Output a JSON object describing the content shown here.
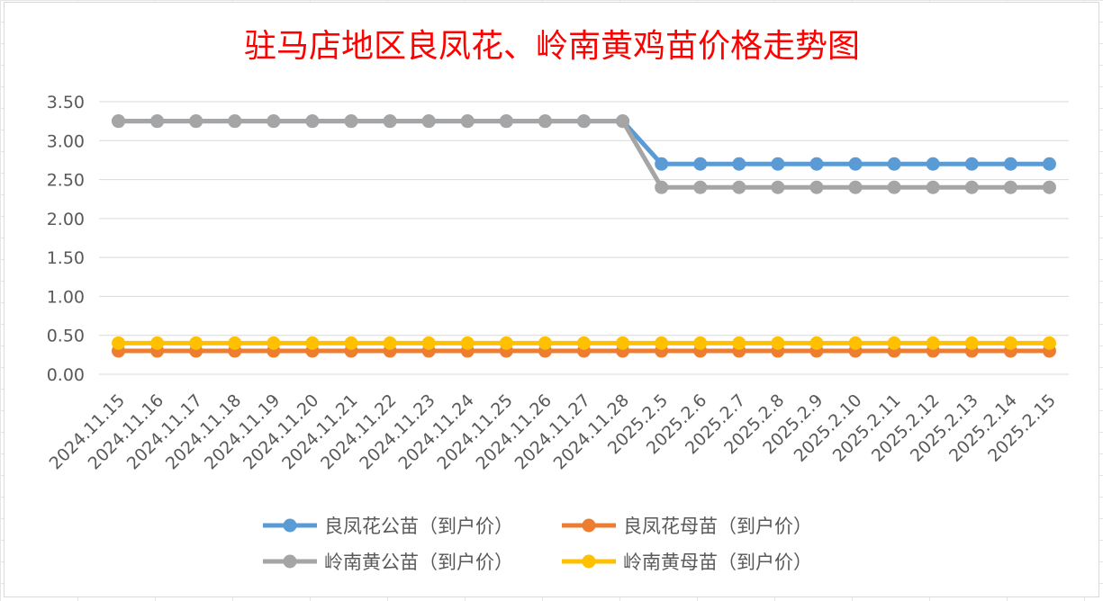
{
  "chart_data": {
    "type": "line",
    "title": "驻马店地区良凤花、岭南黄鸡苗价格走势图",
    "xlabel": "",
    "ylabel": "",
    "ylim": [
      0,
      3.5
    ],
    "yticks": [
      "0.00",
      "0.50",
      "1.00",
      "1.50",
      "2.00",
      "2.50",
      "3.00",
      "3.50"
    ],
    "grid": true,
    "legend_position": "bottom",
    "categories": [
      "2024.11.15",
      "2024.11.16",
      "2024.11.17",
      "2024.11.18",
      "2024.11.19",
      "2024.11.20",
      "2024.11.21",
      "2024.11.22",
      "2024.11.23",
      "2024.11.24",
      "2024.11.25",
      "2024.11.26",
      "2024.11.27",
      "2024.11.28",
      "2025.2.5",
      "2025.2.6",
      "2025.2.7",
      "2025.2.8",
      "2025.2.9",
      "2025.2.10",
      "2025.2.11",
      "2025.2.12",
      "2025.2.13",
      "2025.2.14",
      "2025.2.15"
    ],
    "series": [
      {
        "name": "良凤花公苗（到户价）",
        "color": "#5b9bd5",
        "values": [
          3.25,
          3.25,
          3.25,
          3.25,
          3.25,
          3.25,
          3.25,
          3.25,
          3.25,
          3.25,
          3.25,
          3.25,
          3.25,
          3.25,
          2.7,
          2.7,
          2.7,
          2.7,
          2.7,
          2.7,
          2.7,
          2.7,
          2.7,
          2.7,
          2.7
        ]
      },
      {
        "name": "良凤花母苗（到户价）",
        "color": "#ed7d31",
        "values": [
          0.3,
          0.3,
          0.3,
          0.3,
          0.3,
          0.3,
          0.3,
          0.3,
          0.3,
          0.3,
          0.3,
          0.3,
          0.3,
          0.3,
          0.3,
          0.3,
          0.3,
          0.3,
          0.3,
          0.3,
          0.3,
          0.3,
          0.3,
          0.3,
          0.3
        ]
      },
      {
        "name": "岭南黄公苗（到户价）",
        "color": "#a5a5a5",
        "values": [
          3.25,
          3.25,
          3.25,
          3.25,
          3.25,
          3.25,
          3.25,
          3.25,
          3.25,
          3.25,
          3.25,
          3.25,
          3.25,
          3.25,
          2.4,
          2.4,
          2.4,
          2.4,
          2.4,
          2.4,
          2.4,
          2.4,
          2.4,
          2.4,
          2.4
        ]
      },
      {
        "name": "岭南黄母苗（到户价）",
        "color": "#ffc000",
        "values": [
          0.4,
          0.4,
          0.4,
          0.4,
          0.4,
          0.4,
          0.4,
          0.4,
          0.4,
          0.4,
          0.4,
          0.4,
          0.4,
          0.4,
          0.4,
          0.4,
          0.4,
          0.4,
          0.4,
          0.4,
          0.4,
          0.4,
          0.4,
          0.4,
          0.4
        ]
      }
    ]
  }
}
